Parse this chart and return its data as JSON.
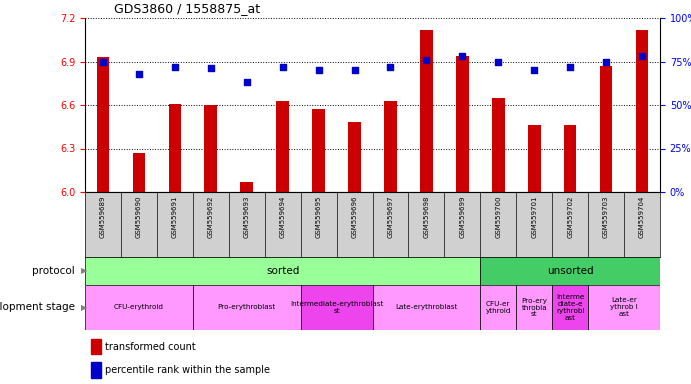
{
  "title": "GDS3860 / 1558875_at",
  "samples": [
    "GSM559689",
    "GSM559690",
    "GSM559691",
    "GSM559692",
    "GSM559693",
    "GSM559694",
    "GSM559695",
    "GSM559696",
    "GSM559697",
    "GSM559698",
    "GSM559699",
    "GSM559700",
    "GSM559701",
    "GSM559702",
    "GSM559703",
    "GSM559704"
  ],
  "bar_values": [
    6.93,
    6.27,
    6.61,
    6.6,
    6.07,
    6.63,
    6.57,
    6.48,
    6.63,
    7.12,
    6.94,
    6.65,
    6.46,
    6.46,
    6.87,
    7.12
  ],
  "dot_values": [
    75,
    68,
    72,
    71,
    63,
    72,
    70,
    70,
    72,
    76,
    78,
    75,
    70,
    72,
    75,
    78
  ],
  "ylim_left": [
    6.0,
    7.2
  ],
  "ylim_right": [
    0,
    100
  ],
  "yticks_left": [
    6.0,
    6.3,
    6.6,
    6.9,
    7.2
  ],
  "yticks_right": [
    0,
    25,
    50,
    75,
    100
  ],
  "bar_color": "#cc0000",
  "dot_color": "#0000cc",
  "background_color": "#ffffff",
  "xtick_bg": "#d0d0d0",
  "protocol_sorted_color": "#99ff99",
  "protocol_unsorted_color": "#44cc66",
  "dev_pink_light": "#ff99ff",
  "dev_pink_dark": "#ee44ee",
  "sorted_count": 11,
  "stage_defs": [
    {
      "start": 0,
      "end": 3,
      "label": "CFU-erythroid",
      "dark": false
    },
    {
      "start": 3,
      "end": 6,
      "label": "Pro-erythroblast",
      "dark": false
    },
    {
      "start": 6,
      "end": 8,
      "label": "Intermediate-erythroblast\nst",
      "dark": true
    },
    {
      "start": 8,
      "end": 11,
      "label": "Late-erythroblast",
      "dark": false
    },
    {
      "start": 11,
      "end": 12,
      "label": "CFU-er\nythroid",
      "dark": false
    },
    {
      "start": 12,
      "end": 13,
      "label": "Pro-ery\nthrobla\nst",
      "dark": false
    },
    {
      "start": 13,
      "end": 14,
      "label": "Interme\ndiate-e\nrythrobl\nast",
      "dark": true
    },
    {
      "start": 14,
      "end": 16,
      "label": "Late-er\nythrob l\nast",
      "dark": false
    }
  ]
}
